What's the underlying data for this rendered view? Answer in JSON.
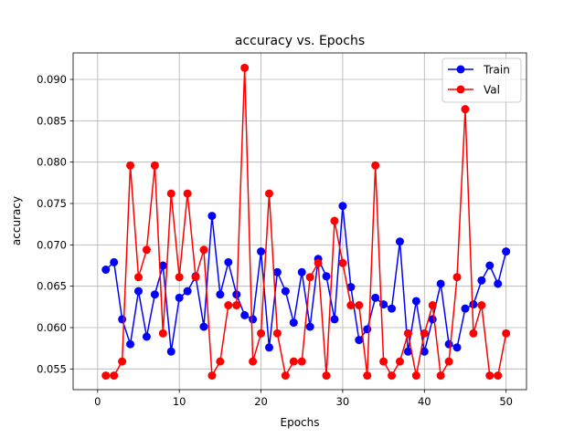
{
  "chart_data": {
    "type": "line",
    "title": "accuracy vs. Epochs",
    "xlabel": "Epochs",
    "ylabel": "accuracy",
    "xlim": [
      -3.0,
      52.5
    ],
    "ylim": [
      0.0525,
      0.0932
    ],
    "xticks": [
      0,
      10,
      20,
      30,
      40,
      50
    ],
    "xtick_labels": [
      "0",
      "10",
      "20",
      "30",
      "40",
      "50"
    ],
    "yticks": [
      0.055,
      0.06,
      0.065,
      0.07,
      0.075,
      0.08,
      0.085,
      0.09
    ],
    "ytick_labels": [
      "0.055",
      "0.060",
      "0.065",
      "0.070",
      "0.075",
      "0.080",
      "0.085",
      "0.090"
    ],
    "grid": true,
    "legend_position": "top-right",
    "x": [
      1,
      2,
      3,
      4,
      5,
      6,
      7,
      8,
      9,
      10,
      11,
      12,
      13,
      14,
      15,
      16,
      17,
      18,
      19,
      20,
      21,
      22,
      23,
      24,
      25,
      26,
      27,
      28,
      29,
      30,
      31,
      32,
      33,
      34,
      35,
      36,
      37,
      38,
      39,
      40,
      41,
      42,
      43,
      44,
      45,
      46,
      47,
      48,
      49,
      50
    ],
    "series": [
      {
        "name": "Train",
        "color": "#0000ff",
        "values": [
          0.067,
          0.0679,
          0.061,
          0.058,
          0.0644,
          0.0589,
          0.064,
          0.0675,
          0.0571,
          0.0636,
          0.0644,
          0.0662,
          0.0601,
          0.0735,
          0.064,
          0.0679,
          0.064,
          0.0615,
          0.061,
          0.0692,
          0.0576,
          0.0667,
          0.0644,
          0.0606,
          0.0667,
          0.0601,
          0.0683,
          0.0662,
          0.061,
          0.0747,
          0.0649,
          0.0585,
          0.0598,
          0.0636,
          0.0628,
          0.0623,
          0.0704,
          0.0571,
          0.0632,
          0.0571,
          0.061,
          0.0653,
          0.058,
          0.0576,
          0.0623,
          0.0628,
          0.0657,
          0.0675,
          0.0653,
          0.0692
        ]
      },
      {
        "name": "Val",
        "color": "#ff0000",
        "values": [
          0.0542,
          0.0542,
          0.0559,
          0.0796,
          0.0661,
          0.0694,
          0.0796,
          0.0593,
          0.0762,
          0.0661,
          0.0762,
          0.0661,
          0.0694,
          0.0542,
          0.0559,
          0.0627,
          0.0627,
          0.0914,
          0.0559,
          0.0593,
          0.0762,
          0.0593,
          0.0542,
          0.0559,
          0.0559,
          0.0661,
          0.0678,
          0.0542,
          0.0729,
          0.0678,
          0.0627,
          0.0627,
          0.0542,
          0.0796,
          0.0559,
          0.0542,
          0.0559,
          0.0593,
          0.0542,
          0.0593,
          0.0627,
          0.0542,
          0.0559,
          0.0661,
          0.0864,
          0.0593,
          0.0627,
          0.0542,
          0.0542,
          0.0593
        ]
      }
    ]
  }
}
